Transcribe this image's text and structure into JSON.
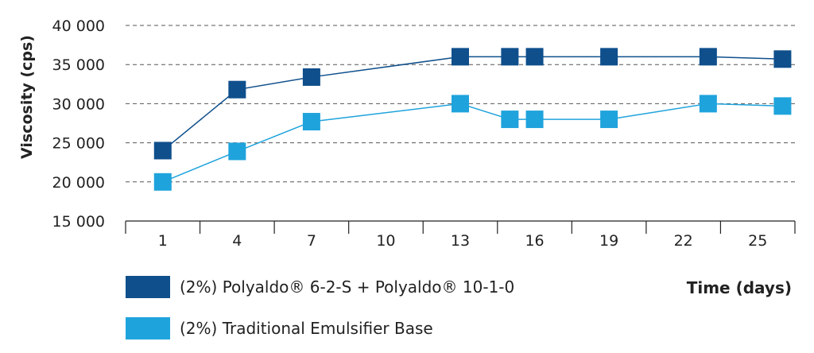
{
  "chart_data": {
    "type": "line",
    "ylabel": "Viscosity (cps)",
    "xlabel": "Time (days)",
    "ylim": [
      15000,
      40000
    ],
    "y_ticks": [
      "40 000",
      "35 000",
      "30 000",
      "25 000",
      "20 000",
      "15 000"
    ],
    "y_tick_values": [
      40000,
      35000,
      30000,
      25000,
      20000,
      15000
    ],
    "x_tick_labels": [
      "1",
      "4",
      "7",
      "10",
      "13",
      "16",
      "19",
      "22",
      "25"
    ],
    "x_tick_values": [
      1,
      4,
      7,
      10,
      13,
      16,
      19,
      22,
      25
    ],
    "xlim": [
      -0.5,
      26.5
    ],
    "grid": "horizontal dashed",
    "legend_position": "bottom-left",
    "series": [
      {
        "name": "(2%) Polyaldo® 6-2-S + Polyaldo® 10-1-0",
        "color": "#0f4f8c",
        "x": [
          1,
          4,
          7,
          13,
          15,
          16,
          19,
          23,
          26
        ],
        "y": [
          24000,
          31800,
          33400,
          36000,
          36000,
          36000,
          36000,
          36000,
          35700
        ]
      },
      {
        "name": "(2%) Traditional Emulsifier Base",
        "color": "#1fa3dc",
        "x": [
          1,
          4,
          7,
          13,
          15,
          16,
          19,
          23,
          26
        ],
        "y": [
          20000,
          23900,
          27700,
          30000,
          28000,
          28000,
          28000,
          30000,
          29700
        ]
      }
    ]
  }
}
